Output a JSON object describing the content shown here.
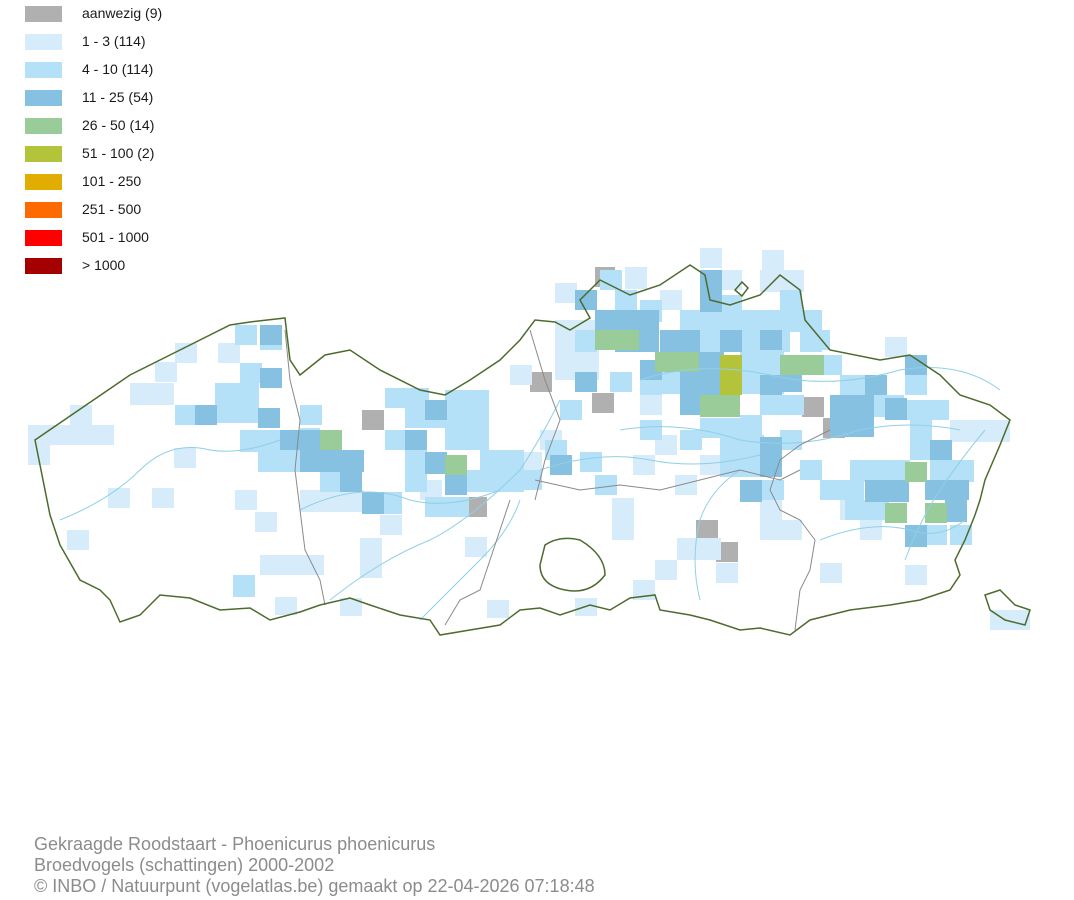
{
  "legend": [
    {
      "label": "aanwezig (9)",
      "color": "#b0b0b0"
    },
    {
      "label": "1 - 3 (114)",
      "color": "#d6ecfb"
    },
    {
      "label": "4 - 10 (114)",
      "color": "#b4e0f8"
    },
    {
      "label": "11 - 25 (54)",
      "color": "#86c1e2"
    },
    {
      "label": "26 - 50 (14)",
      "color": "#99cc99"
    },
    {
      "label": "51 - 100 (2)",
      "color": "#b3c33a"
    },
    {
      "label": "101 - 250",
      "color": "#e1ad01"
    },
    {
      "label": "251 - 500",
      "color": "#ff6a00"
    },
    {
      "label": "501 - 1000",
      "color": "#ff0000"
    },
    {
      "label": "> 1000",
      "color": "#a50000"
    }
  ],
  "credits": {
    "line1": "Gekraagde Roodstaart - Phoenicurus phoenicurus",
    "line2": "Broedvogels (schattingen) 2000-2002",
    "line3": "© INBO / Natuurpunt (vogelatlas.be) gemaakt op 22-04-2026 07:18:48"
  },
  "map_colors": {
    "outline": "#4d6b2e",
    "province_border": "#8a8a8a",
    "rivers": "#8fd0e6"
  }
}
